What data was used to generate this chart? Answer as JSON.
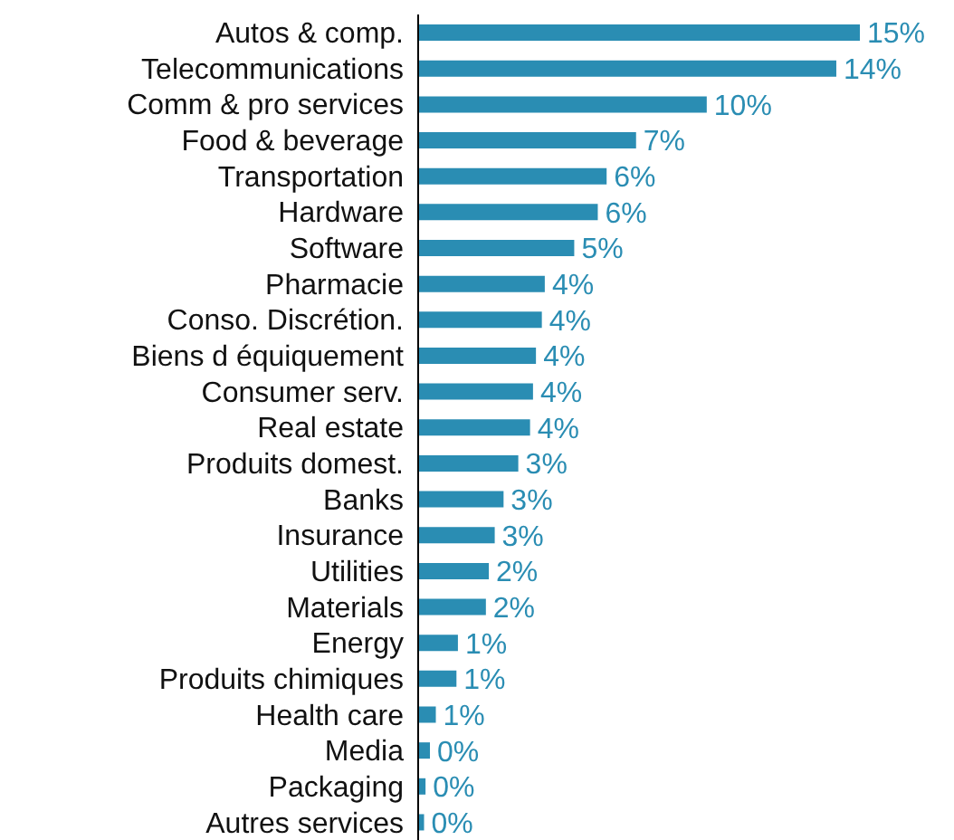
{
  "chart_data": {
    "type": "bar",
    "orientation": "horizontal",
    "categories": [
      "Autos & comp.",
      "Telecommunications",
      "Comm & pro services",
      "Food & beverage",
      "Transportation",
      "Hardware",
      "Software",
      "Pharmacie",
      "Conso. Discrétion.",
      "Biens d équiquement",
      "Consumer serv.",
      "Real estate",
      "Produits domest.",
      "Banks",
      "Insurance",
      "Utilities",
      "Materials",
      "Energy",
      "Produits chimiques",
      "Health care",
      "Media",
      "Packaging",
      "Autres services"
    ],
    "values": [
      15,
      14.2,
      9.8,
      7.4,
      6.4,
      6.1,
      5.3,
      4.3,
      4.2,
      4.0,
      3.9,
      3.8,
      3.4,
      2.9,
      2.6,
      2.4,
      2.3,
      1.35,
      1.3,
      0.6,
      0.4,
      0.25,
      0.2
    ],
    "value_labels": [
      "15%",
      "14%",
      "10%",
      "7%",
      "6%",
      "6%",
      "5%",
      "4%",
      "4%",
      "4%",
      "4%",
      "4%",
      "3%",
      "3%",
      "3%",
      "2%",
      "2%",
      "1%",
      "1%",
      "1%",
      "0%",
      "0%",
      "0%"
    ],
    "color": "#2a8db3",
    "grid": false,
    "legend": false
  }
}
